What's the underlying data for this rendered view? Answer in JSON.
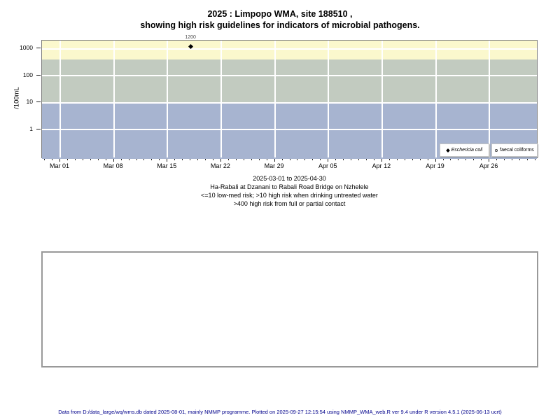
{
  "title": {
    "line1": "2025 : Limpopo WMA, site 188510 ,",
    "line2": "showing high risk guidelines for indicators of microbial pathogens."
  },
  "chart_data": {
    "type": "scatter",
    "title": "2025 : Limpopo WMA, site 188510 , showing high risk guidelines for indicators of microbial pathogens.",
    "ylabel": "/100mL",
    "y_scale": "log",
    "ylim": [
      0.08,
      2000
    ],
    "y_ticks": [
      1000,
      100,
      10,
      1
    ],
    "x_epoch": "2025-03-01",
    "x_ticks": [
      "Mar 01",
      "Mar 08",
      "Mar 15",
      "Mar 22",
      "Mar 29",
      "Apr 05",
      "Apr 12",
      "Apr 19",
      "Apr 26"
    ],
    "x_range": [
      "2025-02-26",
      "2025-05-02"
    ],
    "grid": true,
    "legend_position": "bottom-right",
    "bands": [
      {
        "name": "full-contact-high-risk",
        "label": ">400 high risk from full or partial contact",
        "from": 400,
        "to": 2000,
        "color": "#fbf8cd"
      },
      {
        "name": "drinking-high-risk",
        "label": ">10 high risk when drinking untreated water",
        "from": 10,
        "to": 400,
        "color": "#c2cbc0"
      },
      {
        "name": "low-med-risk",
        "label": "<=10 low-med risk",
        "from": 0.08,
        "to": 10,
        "color": "#a7b4d0"
      }
    ],
    "series": [
      {
        "name": "Eschericia coli",
        "symbol": "filled-diamond",
        "color": "#000000",
        "points": [
          {
            "date": "2025-03-18",
            "value": 1200,
            "label": "1200"
          }
        ]
      },
      {
        "name": "faecal coliforms",
        "symbol": "open-circle",
        "color": "#000000",
        "points": []
      }
    ]
  },
  "subtitle": {
    "line1": "2025-03-01 to 2025-04-30",
    "line2": "Ha-Rabali at Dzanani to Rabali Road Bridge on Nzhelele",
    "line3": "<=10 low-med risk; >10 high risk when drinking untreated water",
    "line4": ">400 high risk from full or partial contact"
  },
  "footer": {
    "text": "Data from D:/data_large/wq/wms.db dated 2025-08-01, mainly NMMP programme. Plotted on 2025-09-27 12:15:54 using NMMP_WMA_web.R ver 9.4 under R version 4.5.1 (2025-06-13 ucrt)",
    "color": "#00008b"
  }
}
